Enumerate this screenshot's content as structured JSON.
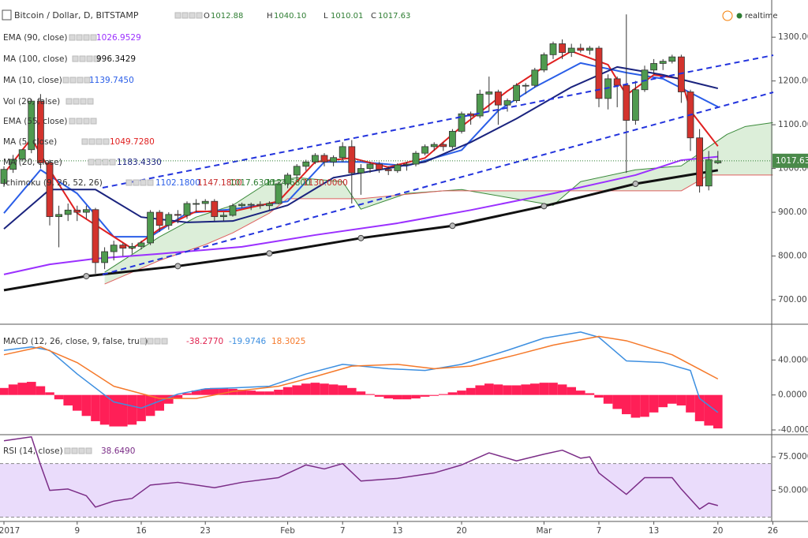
{
  "chart_data": [
    {
      "type": "candlestick",
      "title": "Bitcoin / Dollar, D, BITSTAMP",
      "status": "realtime",
      "ohlc_labels": [
        "O",
        "H",
        "L",
        "C"
      ],
      "ohlc_value_labels": [
        "1012.88",
        "1040.10",
        "1010.01",
        "1017.63"
      ],
      "up_color": "#4f9a4f",
      "down_color": "#d3332d",
      "categories": [
        "2017",
        null,
        null,
        null,
        null,
        null,
        null,
        null,
        "9",
        null,
        null,
        null,
        null,
        null,
        null,
        "16",
        null,
        null,
        null,
        null,
        null,
        null,
        "23",
        null,
        null,
        null,
        null,
        null,
        null,
        null,
        null,
        "Feb",
        null,
        null,
        null,
        null,
        null,
        "7",
        null,
        null,
        null,
        null,
        null,
        "13",
        null,
        null,
        null,
        null,
        null,
        null,
        "20",
        null,
        null,
        null,
        null,
        null,
        null,
        null,
        null,
        "Mar",
        null,
        null,
        null,
        null,
        null,
        "7",
        null,
        null,
        null,
        null,
        null,
        "13",
        null,
        null,
        null,
        null,
        null,
        null,
        "20",
        null,
        null,
        null,
        null,
        null,
        "26"
      ],
      "open": [
        966,
        998,
        1021,
        1043,
        1154,
        1013,
        890,
        895,
        905,
        900,
        906,
        785,
        810,
        825,
        818,
        822,
        830,
        900,
        870,
        895,
        893,
        920,
        920,
        925,
        890,
        893,
        915,
        918,
        918,
        915,
        920,
        965,
        985,
        1005,
        1015,
        1030,
        1015,
        1025,
        1050,
        990,
        1000,
        1010,
        998,
        995,
        1008,
        1010,
        1035,
        1050,
        1055,
        1050,
        1085,
        1125,
        1120,
        1170,
        1175,
        1145,
        1155,
        1190,
        1190,
        1225,
        1260,
        1285,
        1265,
        1275,
        1270,
        1275,
        1160,
        1205,
        1190,
        1110,
        1180,
        1225,
        1240,
        1245,
        1255,
        1175,
        1070,
        960,
        1012.88,
        null,
        null,
        null,
        null,
        null,
        null
      ],
      "high": [
        1005,
        1031,
        1044,
        1159,
        1170,
        1020,
        915,
        920,
        915,
        915,
        910,
        820,
        835,
        830,
        830,
        835,
        905,
        905,
        900,
        905,
        925,
        930,
        930,
        930,
        900,
        920,
        922,
        922,
        925,
        925,
        970,
        990,
        1010,
        1020,
        1035,
        1035,
        1030,
        1060,
        1065,
        1010,
        1015,
        1015,
        1005,
        1012,
        1015,
        1040,
        1055,
        1060,
        1060,
        1090,
        1130,
        1130,
        1180,
        1210,
        1180,
        1160,
        1195,
        1195,
        1230,
        1265,
        1290,
        1295,
        1285,
        1285,
        1280,
        1280,
        1215,
        1210,
        1352,
        1200,
        1235,
        1250,
        1250,
        1260,
        1260,
        1180,
        1090,
        1040,
        1040.1,
        null,
        null,
        null,
        null,
        null,
        null
      ],
      "low": [
        958,
        990,
        1016,
        1035,
        1000,
        870,
        820,
        880,
        880,
        885,
        760,
        770,
        790,
        800,
        805,
        815,
        825,
        855,
        860,
        875,
        885,
        900,
        905,
        880,
        880,
        890,
        910,
        905,
        908,
        905,
        918,
        955,
        975,
        995,
        1010,
        1005,
        1005,
        1015,
        920,
        940,
        990,
        990,
        985,
        990,
        995,
        1005,
        1030,
        1040,
        1040,
        1045,
        1080,
        1100,
        1115,
        1130,
        1100,
        1130,
        1150,
        1170,
        1185,
        1220,
        1250,
        1250,
        1255,
        1265,
        1260,
        1140,
        1135,
        1140,
        990,
        1100,
        1175,
        1215,
        1225,
        1240,
        1150,
        1040,
        945,
        950,
        1010.01,
        null,
        null,
        null,
        null,
        null,
        null
      ],
      "close": [
        998,
        1021,
        1043,
        1154,
        1013,
        890,
        895,
        905,
        900,
        906,
        785,
        810,
        825,
        818,
        822,
        830,
        900,
        870,
        895,
        893,
        920,
        920,
        925,
        890,
        893,
        915,
        918,
        918,
        915,
        920,
        965,
        985,
        1005,
        1015,
        1030,
        1015,
        1025,
        1050,
        990,
        1000,
        1010,
        998,
        995,
        1008,
        1010,
        1035,
        1050,
        1055,
        1050,
        1085,
        1125,
        1120,
        1170,
        1175,
        1145,
        1155,
        1190,
        1190,
        1225,
        1260,
        1285,
        1265,
        1275,
        1270,
        1275,
        1160,
        1205,
        1190,
        1110,
        1180,
        1225,
        1240,
        1245,
        1255,
        1175,
        1070,
        960,
        1020,
        1017.63,
        null,
        null,
        null,
        null,
        null,
        null
      ],
      "ylim": [
        646,
        1385
      ],
      "yticks": [
        {
          "value": 700,
          "label": "700.00"
        },
        {
          "value": 800,
          "label": "800.00"
        },
        {
          "value": 900,
          "label": "900.00"
        },
        {
          "value": 1000,
          "label": "1000.00"
        },
        {
          "value": 1100,
          "label": "1100.00"
        },
        {
          "value": 1200,
          "label": "1200.00"
        },
        {
          "value": 1300,
          "label": "1300.00"
        }
      ],
      "series": [
        {
          "name": "EMA (90, close)",
          "color": "#9b30ff",
          "legend_value": "1026.9529",
          "x": [
            0,
            5,
            10,
            17,
            26,
            34,
            43,
            51,
            60,
            69,
            74,
            78
          ],
          "values": [
            758,
            781,
            794,
            805,
            821,
            848,
            875,
            905,
            943,
            985,
            1019,
            1027
          ]
        },
        {
          "name": "MA (100, close)",
          "color": "#111111",
          "legend_value": "996.3429",
          "x": [
            0,
            9,
            19,
            29,
            39,
            49,
            59,
            69,
            78
          ],
          "values": [
            722,
            754,
            777,
            806,
            841,
            869,
            914,
            965,
            996
          ]
        },
        {
          "name": "MA (10, close)",
          "color": "#2a5ee8",
          "legend_value": "1139.7450",
          "x": [
            0,
            4,
            8,
            12,
            16,
            20,
            25,
            31,
            35,
            39,
            44,
            50,
            54,
            58,
            63,
            68,
            72,
            78
          ],
          "values": [
            898,
            997,
            943,
            844,
            844,
            898,
            907,
            925,
            1015,
            1015,
            1006,
            1042,
            1132,
            1186,
            1241,
            1219,
            1205,
            1141
          ]
        },
        {
          "name": "Vol (20, false)"
        },
        {
          "name": "EMA (55, close)"
        },
        {
          "name": "MA (5, close)",
          "color": "#e02020",
          "legend_value": "1049.7280",
          "x": [
            0,
            3,
            5,
            8,
            12,
            14,
            17,
            21,
            25,
            30,
            34,
            38,
            42,
            46,
            50,
            55,
            59,
            62,
            66,
            68,
            71,
            74,
            75,
            78
          ],
          "values": [
            988,
            1069,
            997,
            898,
            844,
            817,
            862,
            902,
            902,
            925,
            1015,
            1024,
            1003,
            1024,
            1096,
            1177,
            1232,
            1268,
            1237,
            1168,
            1214,
            1205,
            1132,
            1051
          ]
        },
        {
          "name": "MA (20, close)",
          "color": "#1a237e",
          "legend_value": "1183.4330",
          "x": [
            0,
            5,
            10,
            15,
            20,
            25,
            31,
            36,
            41,
            46,
            51,
            56,
            62,
            67,
            72,
            78
          ],
          "values": [
            862,
            952,
            952,
            889,
            877,
            880,
            916,
            979,
            997,
            1015,
            1060,
            1114,
            1186,
            1232,
            1214,
            1183
          ]
        }
      ],
      "cloud": {
        "name": "Ichimoku (9, 26, 52, 26)",
        "fill": "#d3ead0",
        "legend_values": [
          "1102.1800",
          "1147.1800",
          "1017.6300",
          "1124.6800",
          "1130.0000"
        ],
        "legend_colors": [
          "#2a5ee8",
          "#c62828",
          "#2e7d32",
          "#2e7d32",
          "#c62828"
        ],
        "upper": {
          "color": "#3a8a3a",
          "x": [
            11,
            17,
            21,
            25,
            29,
            32,
            37,
            39,
            44,
            50,
            55,
            60,
            63,
            69,
            74,
            79,
            81,
            84
          ],
          "values": [
            763,
            844,
            889,
            916,
            970,
            979,
            970,
            907,
            943,
            952,
            934,
            916,
            970,
            997,
            1006,
            1078,
            1096,
            1105
          ]
        },
        "lower": {
          "color": "#e06060",
          "x": [
            11,
            17,
            22,
            25,
            29,
            31,
            39,
            48,
            60,
            74,
            77,
            84
          ],
          "values": [
            736,
            790,
            826,
            853,
            898,
            931,
            931,
            949,
            949,
            949,
            985,
            985
          ]
        }
      }
    },
    {
      "type": "macd",
      "legend": "MACD (12, 26, close, 9, false, true)",
      "legend_values": [
        "-38.2770",
        "-19.9746",
        "18.3025"
      ],
      "legend_colors": [
        "#e0224f",
        "#3d8fe0",
        "#f5792a"
      ],
      "ylim": [
        -44.5,
        80
      ],
      "yticks": [
        {
          "value": -40,
          "label": "-40.0000"
        },
        {
          "value": 0,
          "label": "0.0000"
        },
        {
          "value": 40,
          "label": "40.0000"
        }
      ],
      "histogram": {
        "color": "#ff1f57",
        "values": [
          8,
          12,
          14,
          15,
          10,
          3,
          -5,
          -12,
          -18,
          -24,
          -30,
          -34,
          -36,
          -36,
          -34,
          -30,
          -24,
          -18,
          -10,
          -4,
          2,
          5,
          7,
          8,
          8,
          7,
          6,
          5,
          4,
          4,
          6,
          9,
          11,
          13,
          14,
          13,
          12,
          11,
          8,
          4,
          1,
          -2,
          -4,
          -5,
          -5,
          -4,
          -2,
          -1,
          1,
          3,
          5,
          8,
          11,
          13,
          12,
          11,
          11,
          12,
          13,
          14,
          14,
          12,
          9,
          5,
          2,
          -3,
          -10,
          -16,
          -22,
          -26,
          -25,
          -20,
          -14,
          -10,
          -12,
          -20,
          -30,
          -35,
          -38.277,
          null,
          null,
          null,
          null,
          null,
          null
        ]
      },
      "lines": [
        {
          "color": "#3d8fe0",
          "x": [
            0,
            3,
            5,
            8,
            12,
            15,
            19,
            22,
            25,
            29,
            33,
            37,
            42,
            46,
            50,
            55,
            59,
            63,
            65,
            68,
            72,
            75,
            76,
            78
          ],
          "values": [
            51,
            55,
            51,
            24,
            -8,
            -15,
            1,
            7,
            8,
            10,
            24,
            35,
            30,
            28,
            35,
            51,
            65,
            72,
            66,
            39,
            37,
            28,
            -4,
            -19.9746
          ]
        },
        {
          "color": "#f5792a",
          "x": [
            0,
            4,
            8,
            12,
            17,
            21,
            25,
            30,
            34,
            38,
            43,
            47,
            51,
            56,
            60,
            65,
            68,
            73,
            78
          ],
          "values": [
            46,
            55,
            37,
            10,
            -4,
            -4,
            4,
            10,
            21,
            33,
            35,
            30,
            33,
            46,
            57,
            67,
            62,
            46,
            18.3025
          ]
        }
      ]
    },
    {
      "type": "line",
      "legend": "RSI (14, close)",
      "legend_value": "38.6490",
      "color": "#7b2d87",
      "band": [
        30,
        70
      ],
      "band_color": "#eadcfb",
      "ylim": [
        27.4,
        91
      ],
      "yticks": [
        {
          "value": 50,
          "label": "50.0000"
        },
        {
          "value": 75,
          "label": "75.0000"
        }
      ],
      "x": [
        0,
        3,
        4,
        5,
        7,
        9,
        10,
        12,
        14,
        16,
        19,
        23,
        26,
        30,
        33,
        35,
        37,
        39,
        43,
        47,
        50,
        53,
        56,
        59,
        61,
        63,
        64,
        65,
        68,
        70,
        73,
        74,
        76,
        77,
        78
      ],
      "values": [
        87,
        90,
        69,
        50,
        51,
        46,
        37.5,
        42,
        44,
        54,
        56,
        52,
        56,
        59.5,
        69,
        66,
        70,
        57,
        59,
        63,
        69,
        78,
        72,
        77,
        80,
        74,
        75,
        63,
        47,
        59.5,
        59.5,
        51,
        36,
        40.5,
        38.649
      ]
    }
  ]
}
